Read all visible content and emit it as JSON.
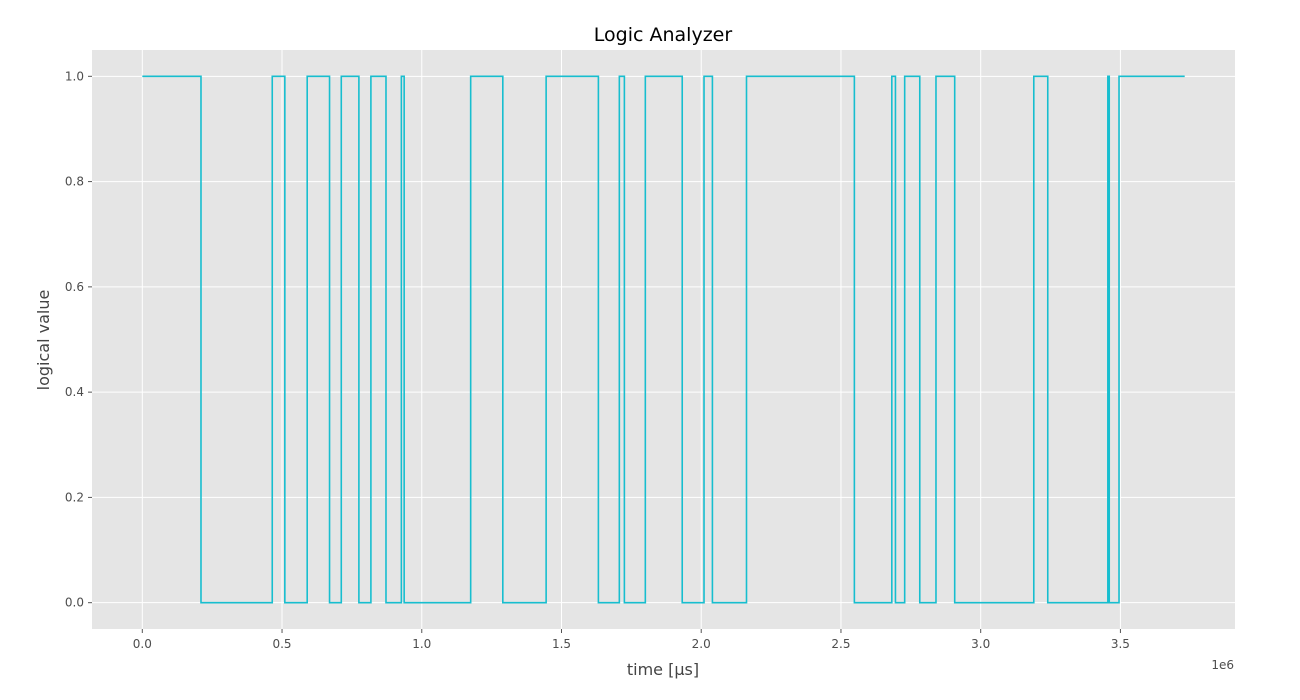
{
  "chart_data": {
    "type": "line",
    "step": true,
    "title": "Logic Analyzer",
    "xlabel": "time [μs]",
    "ylabel": "logical value",
    "x_offset_label": "1e6",
    "xlim": [
      -180000,
      3910000
    ],
    "ylim": [
      -0.05,
      1.05
    ],
    "xticks": [
      0,
      500000,
      1000000,
      1500000,
      2000000,
      2500000,
      3000000,
      3500000
    ],
    "xtick_labels": [
      "0.0",
      "0.5",
      "1.0",
      "1.5",
      "2.0",
      "2.5",
      "3.0",
      "3.5"
    ],
    "yticks": [
      0.0,
      0.2,
      0.4,
      0.6,
      0.8,
      1.0
    ],
    "ytick_labels": [
      "0.0",
      "0.2",
      "0.4",
      "0.6",
      "0.8",
      "1.0"
    ],
    "grid": true,
    "style": "ggplot",
    "color": "#17becf",
    "series": [
      {
        "x": [
          0,
          210000,
          465000,
          510000,
          590000,
          670000,
          712000,
          775000,
          818000,
          872000,
          927000,
          937000,
          1175000,
          1290000,
          1445000,
          1632000,
          1707000,
          1725000,
          1800000,
          1932000,
          2010000,
          2040000,
          2162000,
          2548000,
          2682000,
          2695000,
          2728000,
          2782000,
          2840000,
          2907000,
          3190000,
          3240000,
          3455000,
          3460000,
          3495000,
          3730000
        ],
        "y": [
          1,
          0,
          1,
          0,
          1,
          0,
          1,
          0,
          1,
          0,
          1,
          0,
          1,
          0,
          1,
          0,
          1,
          0,
          1,
          0,
          1,
          0,
          1,
          0,
          1,
          0,
          1,
          0,
          1,
          0,
          1,
          0,
          1,
          0,
          1,
          1
        ]
      }
    ]
  }
}
